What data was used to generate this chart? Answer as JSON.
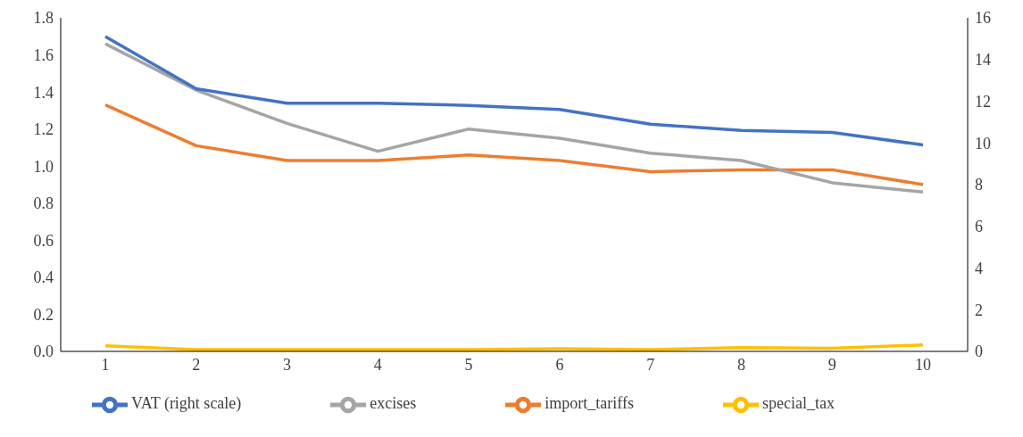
{
  "chart_data": {
    "type": "line",
    "categories": [
      "1",
      "2",
      "3",
      "4",
      "5",
      "6",
      "7",
      "8",
      "9",
      "10"
    ],
    "series": [
      {
        "name": "import_tariffs",
        "color": "#ed7d31",
        "values": [
          1.33,
          1.11,
          1.03,
          1.03,
          1.06,
          1.03,
          0.97,
          0.98,
          0.98,
          0.9
        ]
      },
      {
        "name": "excises",
        "color": "#a5a5a5",
        "values": [
          1.66,
          1.41,
          1.23,
          1.08,
          1.2,
          1.15,
          1.07,
          1.03,
          0.91,
          0.86
        ]
      },
      {
        "name": "special_tax",
        "color": "#ffc000",
        "values": [
          0.03,
          0.01,
          0.01,
          0.01,
          0.01,
          0.015,
          0.01,
          0.02,
          0.017,
          0.035
        ]
      },
      {
        "name": "VAT (right scale)",
        "color": "#4472c4",
        "axis": "y2",
        "values": [
          15.1,
          12.6,
          11.9,
          11.9,
          11.8,
          11.6,
          10.9,
          10.6,
          10.5,
          9.9
        ]
      }
    ],
    "ylim": [
      0,
      1.8
    ],
    "yticks": [
      {
        "value": 0,
        "label": "0.0"
      },
      {
        "value": 0.2,
        "label": "0.2"
      },
      {
        "value": 0.4,
        "label": "0.4"
      },
      {
        "value": 0.6,
        "label": "0.6"
      },
      {
        "value": 0.8,
        "label": "0.8"
      },
      {
        "value": 1,
        "label": "1.0"
      },
      {
        "value": 1.2,
        "label": "1.2"
      },
      {
        "value": 1.4,
        "label": "1.4"
      },
      {
        "value": 1.6,
        "label": "1.6"
      },
      {
        "value": 1.8,
        "label": "1.8"
      }
    ],
    "y2lim": [
      0,
      16
    ],
    "y2ticks": [
      0,
      2,
      4,
      6,
      8,
      10,
      12,
      14,
      16
    ],
    "grid": false,
    "legend": "bottom",
    "marker": "none",
    "line_style": "solid"
  }
}
